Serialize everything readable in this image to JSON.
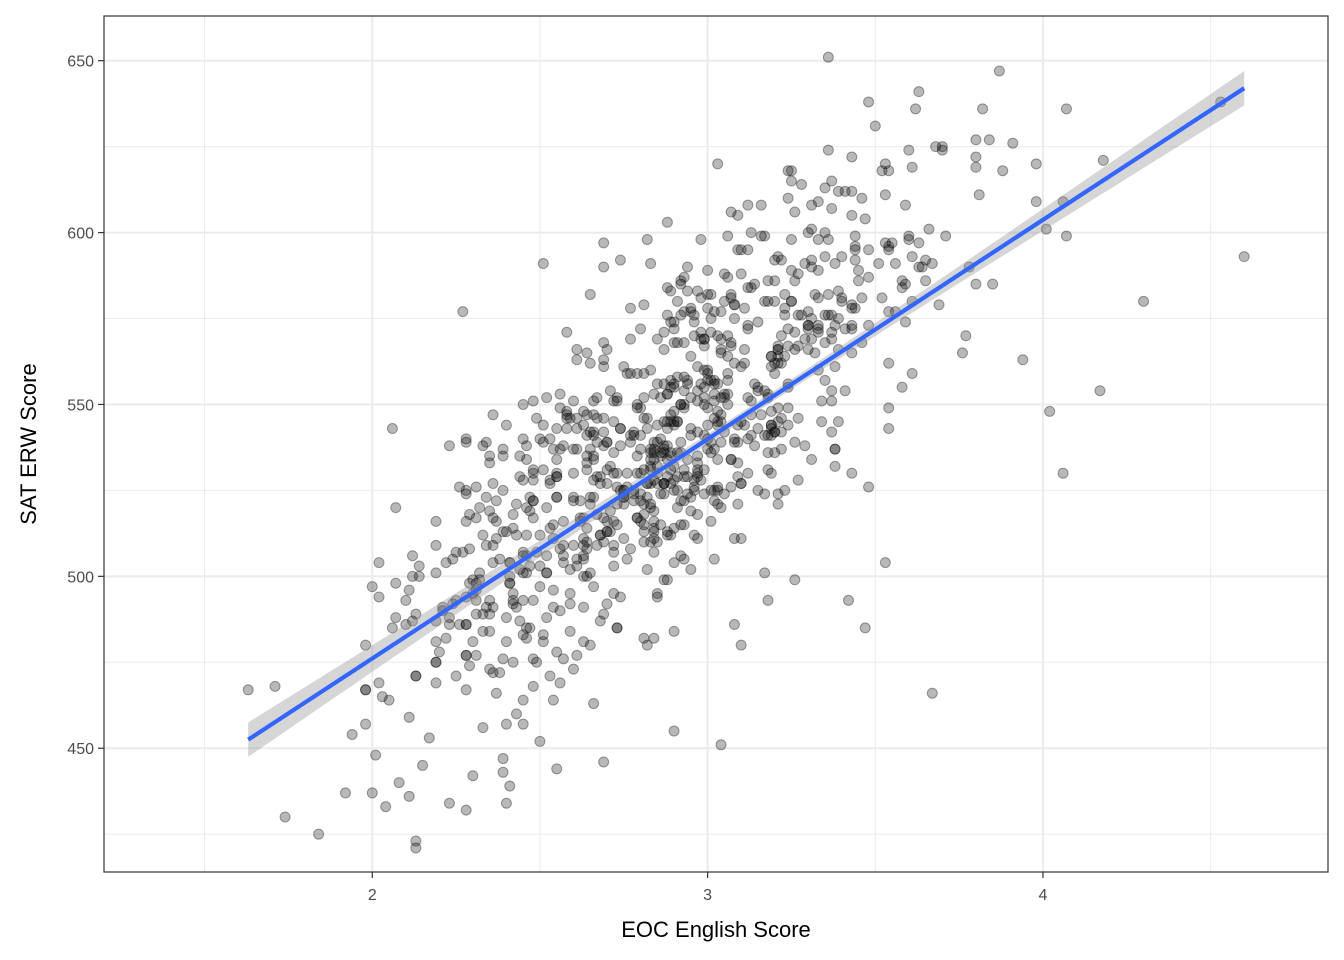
{
  "chart_data": {
    "type": "scatter",
    "title": "",
    "xlabel": "EOC English Score",
    "ylabel": "SAT ERW Score",
    "xlim": [
      1.2,
      4.85
    ],
    "ylim": [
      414,
      663
    ],
    "x_ticks": [
      {
        "value": 2,
        "label": "2"
      },
      {
        "value": 3,
        "label": "3"
      },
      {
        "value": 4,
        "label": "4"
      }
    ],
    "y_ticks": [
      {
        "value": 450,
        "label": "450"
      },
      {
        "value": 500,
        "label": "500"
      },
      {
        "value": 550,
        "label": "550"
      },
      {
        "value": 600,
        "label": "600"
      },
      {
        "value": 650,
        "label": "650"
      }
    ],
    "x_minor_grid": [
      1.5,
      2.5,
      3.5,
      4.5
    ],
    "y_minor_grid": [
      425,
      475,
      525,
      575,
      625
    ],
    "grid": true,
    "theme": "bw",
    "points_style": {
      "color": "#000000",
      "opacity": 0.28
    },
    "highlighted_points": [
      {
        "x": 1.63,
        "y": 467
      },
      {
        "x": 1.71,
        "y": 468
      },
      {
        "x": 1.74,
        "y": 430
      },
      {
        "x": 1.84,
        "y": 425
      },
      {
        "x": 1.92,
        "y": 437
      },
      {
        "x": 1.94,
        "y": 454
      },
      {
        "x": 2.0,
        "y": 437
      },
      {
        "x": 2.01,
        "y": 448
      },
      {
        "x": 2.03,
        "y": 465
      },
      {
        "x": 2.04,
        "y": 433
      },
      {
        "x": 2.06,
        "y": 543
      },
      {
        "x": 2.07,
        "y": 520
      },
      {
        "x": 2.07,
        "y": 498
      },
      {
        "x": 2.08,
        "y": 440
      },
      {
        "x": 2.11,
        "y": 436
      },
      {
        "x": 2.12,
        "y": 487
      },
      {
        "x": 2.13,
        "y": 423
      },
      {
        "x": 2.15,
        "y": 445
      },
      {
        "x": 2.27,
        "y": 577
      },
      {
        "x": 2.28,
        "y": 432
      },
      {
        "x": 2.3,
        "y": 442
      },
      {
        "x": 2.31,
        "y": 526
      },
      {
        "x": 2.33,
        "y": 538
      },
      {
        "x": 2.4,
        "y": 434
      },
      {
        "x": 2.41,
        "y": 439
      },
      {
        "x": 2.55,
        "y": 444
      },
      {
        "x": 2.58,
        "y": 571
      },
      {
        "x": 2.61,
        "y": 566
      },
      {
        "x": 2.65,
        "y": 582
      },
      {
        "x": 2.69,
        "y": 446
      },
      {
        "x": 2.9,
        "y": 455
      },
      {
        "x": 2.92,
        "y": 585
      },
      {
        "x": 3.04,
        "y": 451
      },
      {
        "x": 3.07,
        "y": 606
      },
      {
        "x": 3.1,
        "y": 480
      },
      {
        "x": 3.1,
        "y": 595
      },
      {
        "x": 3.18,
        "y": 493
      },
      {
        "x": 3.26,
        "y": 499
      },
      {
        "x": 3.36,
        "y": 651
      },
      {
        "x": 3.37,
        "y": 607
      },
      {
        "x": 3.39,
        "y": 612
      },
      {
        "x": 3.42,
        "y": 493
      },
      {
        "x": 3.47,
        "y": 485
      },
      {
        "x": 3.48,
        "y": 638
      },
      {
        "x": 3.5,
        "y": 631
      },
      {
        "x": 3.53,
        "y": 504
      },
      {
        "x": 3.59,
        "y": 608
      },
      {
        "x": 3.62,
        "y": 636
      },
      {
        "x": 3.63,
        "y": 641
      },
      {
        "x": 3.67,
        "y": 466
      },
      {
        "x": 3.7,
        "y": 624
      },
      {
        "x": 3.8,
        "y": 619
      },
      {
        "x": 3.84,
        "y": 627
      },
      {
        "x": 3.87,
        "y": 647
      },
      {
        "x": 3.88,
        "y": 618
      },
      {
        "x": 3.91,
        "y": 626
      },
      {
        "x": 3.98,
        "y": 620
      },
      {
        "x": 4.02,
        "y": 548
      },
      {
        "x": 4.06,
        "y": 530
      },
      {
        "x": 4.07,
        "y": 599
      },
      {
        "x": 4.17,
        "y": 554
      },
      {
        "x": 4.18,
        "y": 621
      },
      {
        "x": 4.3,
        "y": 580
      },
      {
        "x": 4.53,
        "y": 638
      },
      {
        "x": 4.6,
        "y": 593
      }
    ],
    "cloud": {
      "n": 900,
      "x_mean": 2.88,
      "x_sd": 0.42,
      "y_intercept": 328,
      "y_slope": 74,
      "y_resid_sd": 24,
      "x_range": [
        1.95,
        4.15
      ],
      "y_range": [
        420,
        640
      ]
    },
    "regression": {
      "x": [
        1.63,
        4.6
      ],
      "y": [
        452.5,
        642
      ],
      "ci_half_width_ends": 5,
      "ci_half_width_center": 1.4,
      "line_color": "#3366ff",
      "band_color": "#999999"
    }
  }
}
